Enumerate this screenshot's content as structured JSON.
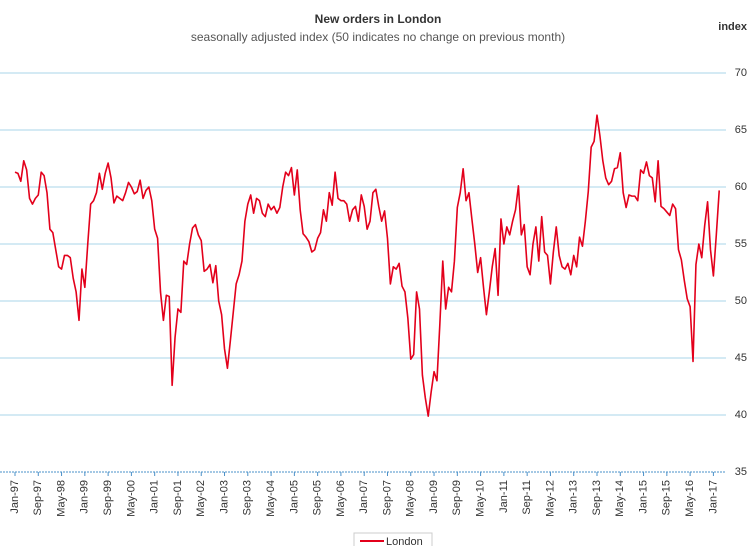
{
  "chart_data": {
    "type": "line",
    "title": "New orders in London",
    "subtitle": "seasonally adjusted index (50 indicates no change on previous month)",
    "y_axis_label": "index",
    "categories": [
      "Jan-97",
      null,
      null,
      null,
      null,
      null,
      null,
      null,
      "Sep-97",
      null,
      null,
      null,
      null,
      null,
      null,
      null,
      "May-98",
      null,
      null,
      null,
      null,
      null,
      null,
      null,
      "Jan-99",
      null,
      null,
      null,
      null,
      null,
      null,
      null,
      "Sep-99",
      null,
      null,
      null,
      null,
      null,
      null,
      null,
      "May-00",
      null,
      null,
      null,
      null,
      null,
      null,
      null,
      "Jan-01",
      null,
      null,
      null,
      null,
      null,
      null,
      null,
      "Sep-01",
      null,
      null,
      null,
      null,
      null,
      null,
      null,
      "May-02",
      null,
      null,
      null,
      null,
      null,
      null,
      null,
      "Jan-03",
      null,
      null,
      null,
      null,
      null,
      null,
      null,
      "Sep-03",
      null,
      null,
      null,
      null,
      null,
      null,
      null,
      "May-04",
      null,
      null,
      null,
      null,
      null,
      null,
      null,
      "Jan-05",
      null,
      null,
      null,
      null,
      null,
      null,
      null,
      "Sep-05",
      null,
      null,
      null,
      null,
      null,
      null,
      null,
      "May-06",
      null,
      null,
      null,
      null,
      null,
      null,
      null,
      "Jan-07",
      null,
      null,
      null,
      null,
      null,
      null,
      null,
      "Sep-07",
      null,
      null,
      null,
      null,
      null,
      null,
      null,
      "May-08",
      null,
      null,
      null,
      null,
      null,
      null,
      null,
      "Jan-09",
      null,
      null,
      null,
      null,
      null,
      null,
      null,
      "Sep-09",
      null,
      null,
      null,
      null,
      null,
      null,
      null,
      "May-10",
      null,
      null,
      null,
      null,
      null,
      null,
      null,
      "Jan-11",
      null,
      null,
      null,
      null,
      null,
      null,
      null,
      "Sep-11",
      null,
      null,
      null,
      null,
      null,
      null,
      null,
      "May-12",
      null,
      null,
      null,
      null,
      null,
      null,
      null,
      "Jan-13",
      null,
      null,
      null,
      null,
      null,
      null,
      null,
      "Sep-13",
      null,
      null,
      null,
      null,
      null,
      null,
      null,
      "May-14",
      null,
      null,
      null,
      null,
      null,
      null,
      null,
      "Jan-15",
      null,
      null,
      null,
      null,
      null,
      null,
      null,
      "Sep-15",
      null,
      null,
      null,
      null,
      null,
      null,
      null,
      "May-16",
      null,
      null,
      null,
      null,
      null,
      null,
      null,
      "Jan-17",
      null,
      null
    ],
    "series": [
      {
        "name": "London",
        "color": "#e3001b",
        "values": [
          61.3,
          61.2,
          60.5,
          62.3,
          61.5,
          59,
          58.5,
          59,
          59.3,
          61.3,
          61,
          59.5,
          56.3,
          56,
          54.5,
          53,
          52.8,
          54,
          54,
          53.8,
          52,
          50.8,
          48.3,
          52.8,
          51.2,
          55,
          58.5,
          58.8,
          59.5,
          61.2,
          59.8,
          61.2,
          62.1,
          60.8,
          58.6,
          59.2,
          59,
          58.8,
          59.5,
          60.4,
          60,
          59.4,
          59.6,
          60.6,
          59,
          59.7,
          60,
          58.8,
          56.3,
          55.5,
          50.8,
          48.3,
          50.5,
          50.4,
          42.6,
          46.8,
          49.3,
          49,
          53.5,
          53.2,
          55,
          56.4,
          56.7,
          55.8,
          55.3,
          52.6,
          52.8,
          53.2,
          51.6,
          53.1,
          50,
          48.8,
          45.8,
          44.1,
          46.5,
          49,
          51.5,
          52.3,
          53.5,
          57,
          58.5,
          59.3,
          57.7,
          59,
          58.8,
          57.7,
          57.4,
          58.5,
          58,
          58.3,
          57.7,
          58.2,
          60,
          61.3,
          61,
          61.7,
          59.3,
          61.5,
          58,
          55.9,
          55.6,
          55.2,
          54.3,
          54.5,
          55.5,
          56,
          58,
          57,
          59.5,
          58.4,
          61.3,
          59,
          58.8,
          58.8,
          58.5,
          57,
          58,
          58.3,
          57,
          59.3,
          58.3,
          56.3,
          57,
          59.5,
          59.8,
          58.3,
          57,
          57.9,
          55.5,
          51.5,
          53,
          52.8,
          53.3,
          51.3,
          50.8,
          48.5,
          44.9,
          45.3,
          50.8,
          49.3,
          43.5,
          41.5,
          39.9,
          42,
          43.8,
          43,
          48,
          53.5,
          49.3,
          51.2,
          50.8,
          53.5,
          58.2,
          59.5,
          61.6,
          58.8,
          59.5,
          57.2,
          55,
          52.5,
          53.8,
          51.2,
          48.8,
          50.8,
          53,
          54.6,
          50.5,
          57.2,
          55,
          56.5,
          55.8,
          57,
          58,
          60.1,
          55.8,
          56.7,
          53,
          52.3,
          55,
          56.5,
          53.5,
          57.4,
          54.3,
          54,
          51.5,
          54.3,
          56.5,
          54,
          53,
          52.8,
          53.3,
          52.3,
          54,
          53,
          55.6,
          54.8,
          57,
          59.6,
          63.5,
          64,
          66.3,
          64.5,
          62.3,
          60.8,
          60.2,
          60.5,
          61.6,
          61.7,
          63,
          59.5,
          58.2,
          59.3,
          59.2,
          59.2,
          58.8,
          61.5,
          61.2,
          62.2,
          61,
          60.8,
          58.7,
          62.3,
          58.3,
          58.1,
          57.8,
          57.5,
          58.5,
          58.1,
          54.5,
          53.6,
          51.8,
          50.2,
          49.5,
          44.7,
          53.2,
          55,
          53.8,
          56.6,
          58.7,
          54.5,
          52.2,
          55.8,
          59.7
        ]
      }
    ],
    "ylim": [
      35,
      70
    ],
    "yticks": [
      35,
      40,
      45,
      50,
      55,
      60,
      65,
      70
    ],
    "grid": true,
    "legend": "bottom"
  }
}
